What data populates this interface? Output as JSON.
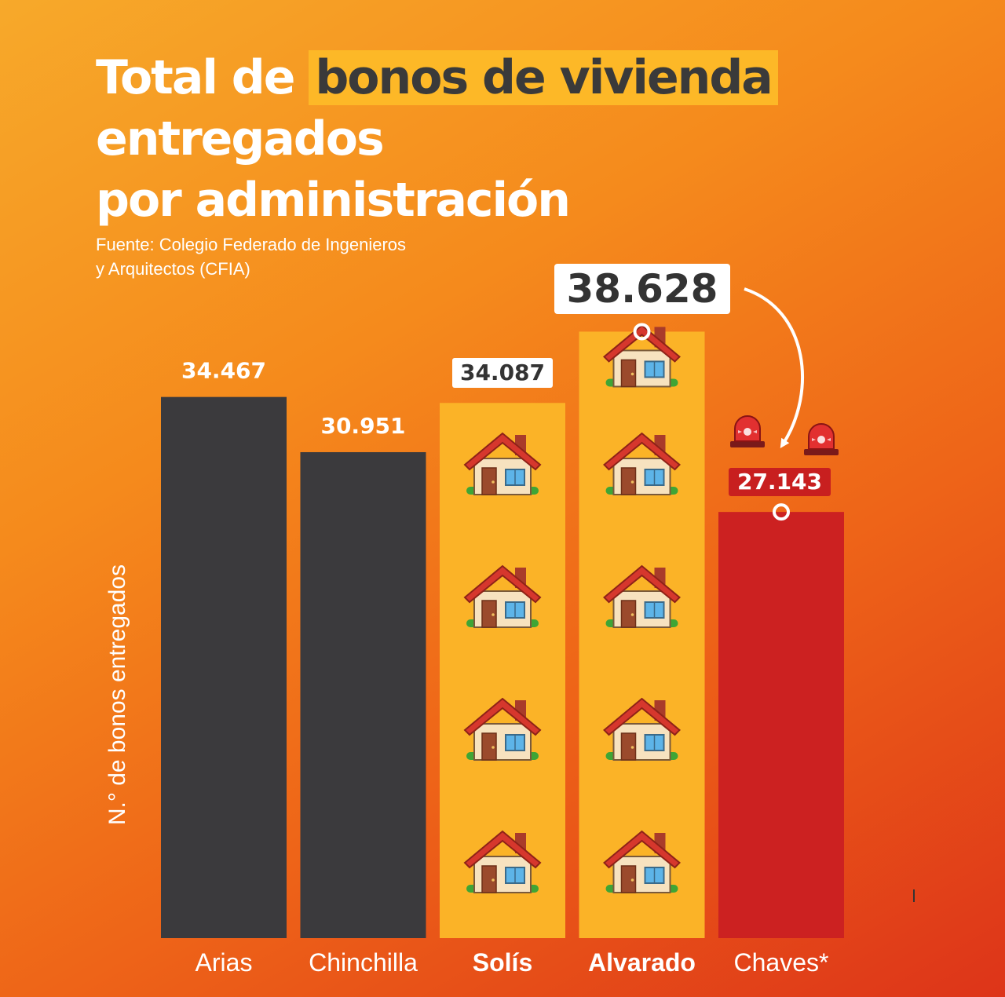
{
  "title": {
    "pre": "Total de",
    "highlight": "bonos de vivienda",
    "line2": "entregados",
    "line3": "por administración"
  },
  "source": {
    "line1": "Fuente: Colegio Federado de Ingenieros",
    "line2": "y Arquitectos (CFIA)"
  },
  "icons": {
    "bar_fill": "house-emoji",
    "alert": "police-light-emoji"
  },
  "colors": {
    "background_start": "#f7a92a",
    "background_end": "#dd3419",
    "dark_bar": "#3b3a3d",
    "highlight_bar": "#fbb327",
    "alert_bar": "#cc2121",
    "label_text": "#ffffff"
  },
  "chart_data": {
    "type": "bar",
    "ylabel": "N.° de bonos entregados",
    "xlabel": "",
    "categories": [
      "Arias",
      "Chinchilla",
      "Solís",
      "Alvarado",
      "Chaves*"
    ],
    "values": [
      34467,
      30951,
      34087,
      38628,
      27143
    ],
    "value_labels": [
      "34.467",
      "30.951",
      "34.087",
      "38.628",
      "27.143"
    ],
    "ylim": [
      0,
      40000
    ],
    "grid": false,
    "legend": "none",
    "styles": [
      "dark",
      "dark",
      "highlight",
      "highlight",
      "alert"
    ],
    "bold_categories": [
      false,
      false,
      true,
      true,
      false
    ]
  }
}
